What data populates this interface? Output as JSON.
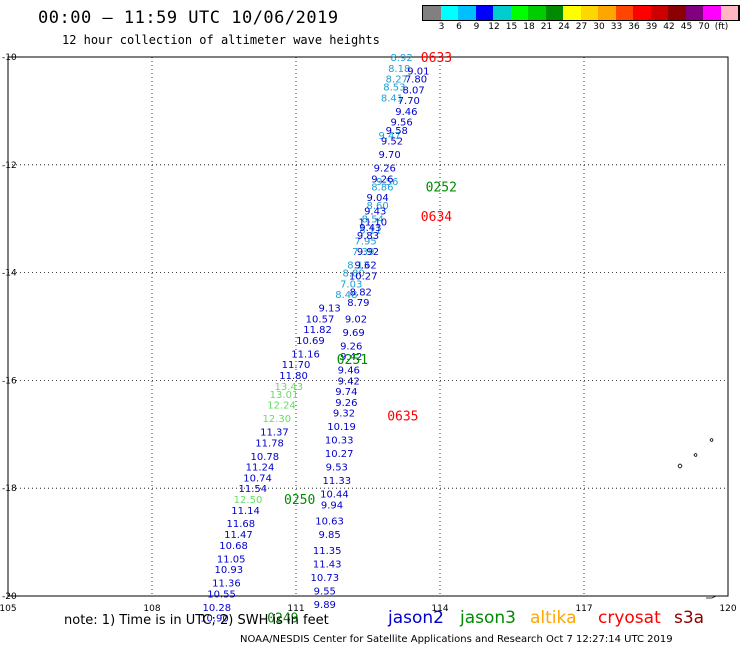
{
  "title": "00:00 – 11:59 UTC 10/06/2019",
  "subtitle": "12 hour collection of altimeter wave heights",
  "legend": {
    "colors": [
      "#808080",
      "#00ffff",
      "#00bfff",
      "#0000ff",
      "#00cdcd",
      "#00ff00",
      "#00cd00",
      "#008b00",
      "#ffff00",
      "#ffd700",
      "#ffa500",
      "#ff4500",
      "#ff0000",
      "#cd0000",
      "#8b0000",
      "#800080",
      "#ff00ff",
      "#ffb6c1",
      "#000000"
    ],
    "labels": [
      "3",
      "6",
      "9",
      "12",
      "15",
      "18",
      "21",
      "24",
      "27",
      "30",
      "33",
      "36",
      "39",
      "42",
      "45",
      "70",
      "(ft)"
    ]
  },
  "map": {
    "lon_range": [
      105,
      120
    ],
    "lat_range": [
      -10,
      -20
    ],
    "lon_ticks": [
      "105",
      "108",
      "111",
      "114",
      "117",
      "120"
    ],
    "lat_ticks": [
      "-10",
      "-12",
      "-14",
      "-16",
      "-18",
      "-20"
    ]
  },
  "colors": {
    "jason2": "#0000cd",
    "jason3": "#008b00",
    "altika": "#ffa500",
    "cryosat": "#ff0000",
    "s3a": "#8b0000",
    "cyan": "#1ea0d2",
    "lightgreen": "#66dd66"
  },
  "tracks": [
    {
      "name": "t1",
      "color": "#1ea0d2",
      "points": [
        {
          "lon": 113.2,
          "lat": -10.0,
          "v": "8.92"
        },
        {
          "lon": 113.15,
          "lat": -10.2,
          "v": "8.18"
        },
        {
          "lon": 113.1,
          "lat": -10.4,
          "v": "8.27"
        },
        {
          "lon": 113.05,
          "lat": -10.55,
          "v": "8.53"
        },
        {
          "lon": 113.0,
          "lat": -10.75,
          "v": "8.41"
        },
        {
          "lon": 112.95,
          "lat": -11.45,
          "v": "9.47"
        },
        {
          "lon": 112.9,
          "lat": -12.3,
          "v": "9.56"
        },
        {
          "lon": 112.8,
          "lat": -12.4,
          "v": "8.86"
        },
        {
          "lon": 112.7,
          "lat": -12.75,
          "v": "8.60"
        },
        {
          "lon": 112.6,
          "lat": -13.0,
          "v": "8.54"
        },
        {
          "lon": 112.55,
          "lat": -13.2,
          "v": "8.11"
        },
        {
          "lon": 112.45,
          "lat": -13.4,
          "v": "7.95"
        },
        {
          "lon": 112.4,
          "lat": -13.6,
          "v": "7.39"
        },
        {
          "lon": 112.3,
          "lat": -13.85,
          "v": "8.13"
        },
        {
          "lon": 112.2,
          "lat": -14.0,
          "v": "8.80"
        },
        {
          "lon": 112.15,
          "lat": -14.2,
          "v": "7.03"
        },
        {
          "lon": 112.05,
          "lat": -14.4,
          "v": "8.48"
        }
      ]
    },
    {
      "name": "t2",
      "color": "#0000cd",
      "points": [
        {
          "lon": 113.55,
          "lat": -10.25,
          "v": "9.01"
        },
        {
          "lon": 113.5,
          "lat": -10.4,
          "v": "7.80"
        },
        {
          "lon": 113.45,
          "lat": -10.6,
          "v": "8.07"
        },
        {
          "lon": 113.35,
          "lat": -10.8,
          "v": "7.70"
        },
        {
          "lon": 113.3,
          "lat": -11.0,
          "v": "9.46"
        },
        {
          "lon": 113.2,
          "lat": -11.2,
          "v": "9.56"
        },
        {
          "lon": 113.1,
          "lat": -11.35,
          "v": "9.58"
        },
        {
          "lon": 113.0,
          "lat": -11.55,
          "v": "9.52"
        },
        {
          "lon": 112.95,
          "lat": -11.8,
          "v": "9.70"
        },
        {
          "lon": 112.85,
          "lat": -12.05,
          "v": "9.26"
        },
        {
          "lon": 112.8,
          "lat": -12.25,
          "v": "9.26"
        },
        {
          "lon": 112.7,
          "lat": -12.6,
          "v": "9.04"
        },
        {
          "lon": 112.65,
          "lat": -12.85,
          "v": "9.43"
        },
        {
          "lon": 112.6,
          "lat": -13.05,
          "v": "11.10"
        },
        {
          "lon": 112.5,
          "lat": -13.3,
          "v": "9.83"
        },
        {
          "lon": 112.5,
          "lat": -13.6,
          "v": "9.92"
        },
        {
          "lon": 112.45,
          "lat": -13.85,
          "v": "9.62"
        },
        {
          "lon": 112.4,
          "lat": -14.05,
          "v": "10.27"
        },
        {
          "lon": 112.35,
          "lat": -14.35,
          "v": "8.82"
        },
        {
          "lon": 112.3,
          "lat": -14.55,
          "v": "8.79"
        },
        {
          "lon": 112.25,
          "lat": -14.85,
          "v": "9.02"
        },
        {
          "lon": 112.2,
          "lat": -15.1,
          "v": "9.69"
        },
        {
          "lon": 112.15,
          "lat": -15.35,
          "v": "9.26"
        },
        {
          "lon": 112.15,
          "lat": -15.55,
          "v": "9.42"
        },
        {
          "lon": 112.1,
          "lat": -15.8,
          "v": "9.46"
        },
        {
          "lon": 112.1,
          "lat": -16.0,
          "v": "9.42"
        },
        {
          "lon": 112.05,
          "lat": -16.2,
          "v": "9.74"
        },
        {
          "lon": 112.05,
          "lat": -16.4,
          "v": "9.26"
        },
        {
          "lon": 112.0,
          "lat": -16.6,
          "v": "9.32"
        },
        {
          "lon": 111.95,
          "lat": -16.85,
          "v": "10.19"
        },
        {
          "lon": 111.9,
          "lat": -17.1,
          "v": "10.33"
        },
        {
          "lon": 111.9,
          "lat": -17.35,
          "v": "10.27"
        },
        {
          "lon": 111.85,
          "lat": -17.6,
          "v": "9.53"
        },
        {
          "lon": 111.85,
          "lat": -17.85,
          "v": "11.33"
        },
        {
          "lon": 111.8,
          "lat": -18.1,
          "v": "10.44"
        },
        {
          "lon": 111.75,
          "lat": -18.3,
          "v": "9.94"
        },
        {
          "lon": 111.7,
          "lat": -18.6,
          "v": "10.63"
        },
        {
          "lon": 111.7,
          "lat": -18.85,
          "v": "9.85"
        },
        {
          "lon": 111.65,
          "lat": -19.15,
          "v": "11.35"
        },
        {
          "lon": 111.65,
          "lat": -19.4,
          "v": "11.43"
        },
        {
          "lon": 111.6,
          "lat": -19.65,
          "v": "10.73"
        },
        {
          "lon": 111.6,
          "lat": -19.9,
          "v": "9.55"
        },
        {
          "lon": 111.6,
          "lat": -20.15,
          "v": "9.89"
        }
      ]
    },
    {
      "name": "t3",
      "color": "#0000cd",
      "points": [
        {
          "lon": 112.55,
          "lat": -13.15,
          "v": "9.43"
        },
        {
          "lon": 111.7,
          "lat": -14.65,
          "v": "9.13"
        },
        {
          "lon": 111.5,
          "lat": -14.85,
          "v": "10.57"
        },
        {
          "lon": 111.45,
          "lat": -15.05,
          "v": "11.82"
        },
        {
          "lon": 111.3,
          "lat": -15.25,
          "v": "10.69"
        },
        {
          "lon": 111.2,
          "lat": -15.5,
          "v": "11.16"
        },
        {
          "lon": 111.0,
          "lat": -15.7,
          "v": "11.70"
        },
        {
          "lon": 110.95,
          "lat": -15.9,
          "v": "11.80"
        }
      ]
    },
    {
      "name": "t4",
      "color": "#66dd66",
      "points": [
        {
          "lon": 110.85,
          "lat": -16.1,
          "v": "13.43"
        },
        {
          "lon": 110.75,
          "lat": -16.25,
          "v": "13.01"
        },
        {
          "lon": 110.7,
          "lat": -16.45,
          "v": "12.24"
        },
        {
          "lon": 110.6,
          "lat": -16.7,
          "v": "12.30"
        }
      ]
    },
    {
      "name": "t5",
      "color": "#0000cd",
      "points": [
        {
          "lon": 110.55,
          "lat": -16.95,
          "v": "11.37"
        },
        {
          "lon": 110.45,
          "lat": -17.15,
          "v": "11.78"
        },
        {
          "lon": 110.35,
          "lat": -17.4,
          "v": "10.78"
        },
        {
          "lon": 110.25,
          "lat": -17.6,
          "v": "11.24"
        },
        {
          "lon": 110.2,
          "lat": -17.8,
          "v": "10.74"
        },
        {
          "lon": 110.1,
          "lat": -18.0,
          "v": "11.54"
        }
      ]
    },
    {
      "name": "t6",
      "color": "#66dd66",
      "points": [
        {
          "lon": 110.0,
          "lat": -18.2,
          "v": "12.50"
        }
      ]
    },
    {
      "name": "t7",
      "color": "#0000cd",
      "points": [
        {
          "lon": 109.95,
          "lat": -18.4,
          "v": "11.14"
        },
        {
          "lon": 109.85,
          "lat": -18.65,
          "v": "11.68"
        },
        {
          "lon": 109.8,
          "lat": -18.85,
          "v": "11.47"
        },
        {
          "lon": 109.7,
          "lat": -19.05,
          "v": "10.68"
        },
        {
          "lon": 109.65,
          "lat": -19.3,
          "v": "11.05"
        },
        {
          "lon": 109.6,
          "lat": -19.5,
          "v": "10.93"
        },
        {
          "lon": 109.55,
          "lat": -19.75,
          "v": "11.36"
        },
        {
          "lon": 109.45,
          "lat": -19.95,
          "v": "10.55"
        },
        {
          "lon": 109.35,
          "lat": -20.2,
          "v": "10.28"
        },
        {
          "lon": 109.3,
          "lat": -20.4,
          "v": "10.90"
        }
      ]
    }
  ],
  "time_labels": [
    {
      "text": "0633",
      "color": "#ff0000",
      "lon": 113.6,
      "lat": -10.0
    },
    {
      "text": "0252",
      "color": "#008b00",
      "lon": 113.7,
      "lat": -12.4
    },
    {
      "text": "0634",
      "color": "#ff0000",
      "lon": 113.6,
      "lat": -12.95
    },
    {
      "text": "0251",
      "color": "#008b00",
      "lon": 111.85,
      "lat": -15.6
    },
    {
      "text": "0635",
      "color": "#ff0000",
      "lon": 112.9,
      "lat": -16.65
    },
    {
      "text": "0250",
      "color": "#008b00",
      "lon": 110.75,
      "lat": -18.2
    },
    {
      "text": "0249",
      "color": "#008b00",
      "lon": 110.4,
      "lat": -20.4
    }
  ],
  "note": "note: 1) Time is in UTC; 2) SWH is in feet",
  "satellites": [
    {
      "name": "jason2",
      "color": "#0000cd"
    },
    {
      "name": "jason3",
      "color": "#008b00"
    },
    {
      "name": "altika",
      "color": "#ffa500"
    },
    {
      "name": "cryosat",
      "color": "#ff0000"
    },
    {
      "name": "s3a",
      "color": "#8b0000"
    }
  ],
  "credit": "NOAA/NESDIS Center for Satellite Applications and Research    Oct  7 12:27:14 UTC 2019"
}
